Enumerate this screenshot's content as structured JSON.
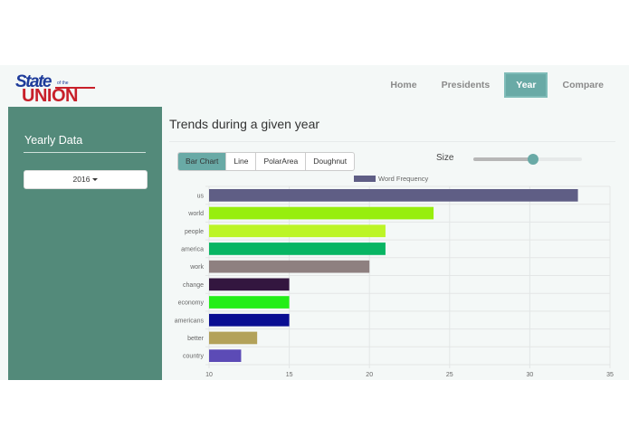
{
  "logo": {
    "text_top": "State",
    "text_small": "of the",
    "text_bottom": "UNION"
  },
  "nav": {
    "items": [
      {
        "label": "Home",
        "active": false
      },
      {
        "label": "Presidents",
        "active": false
      },
      {
        "label": "Year",
        "active": true
      },
      {
        "label": "Compare",
        "active": false
      }
    ]
  },
  "sidebar": {
    "title": "Yearly Data",
    "year_selected": "2016"
  },
  "main": {
    "title": "Trends during a given year",
    "chart_types": [
      "Bar Chart",
      "Line",
      "PolarArea",
      "Doughnut"
    ],
    "active_chart_type": "Bar Chart",
    "size_label": "Size",
    "size_slider_level": 0.55
  },
  "colors": {
    "accent": "#69aaa6",
    "sidebar": "#538a7a"
  },
  "chart_data": {
    "type": "bar",
    "orientation": "horizontal",
    "categories": [
      "us",
      "world",
      "people",
      "america",
      "work",
      "change",
      "economy",
      "americans",
      "better",
      "country"
    ],
    "series": [
      {
        "name": "Word Frequency",
        "values": [
          33,
          24,
          21,
          21,
          20,
          15,
          15,
          15,
          13,
          12
        ]
      }
    ],
    "bar_colors": [
      "#5f5e85",
      "#97ee0e",
      "#bcf526",
      "#08b563",
      "#8e8080",
      "#33163f",
      "#23ee18",
      "#0a0e92",
      "#b3a25a",
      "#5c4bb6"
    ],
    "legend_color": "#5f5e85",
    "xlim": [
      10,
      35
    ],
    "xticks": [
      "10",
      "15",
      "20",
      "25",
      "30",
      "35"
    ],
    "grid": true,
    "legend_position": "top"
  }
}
